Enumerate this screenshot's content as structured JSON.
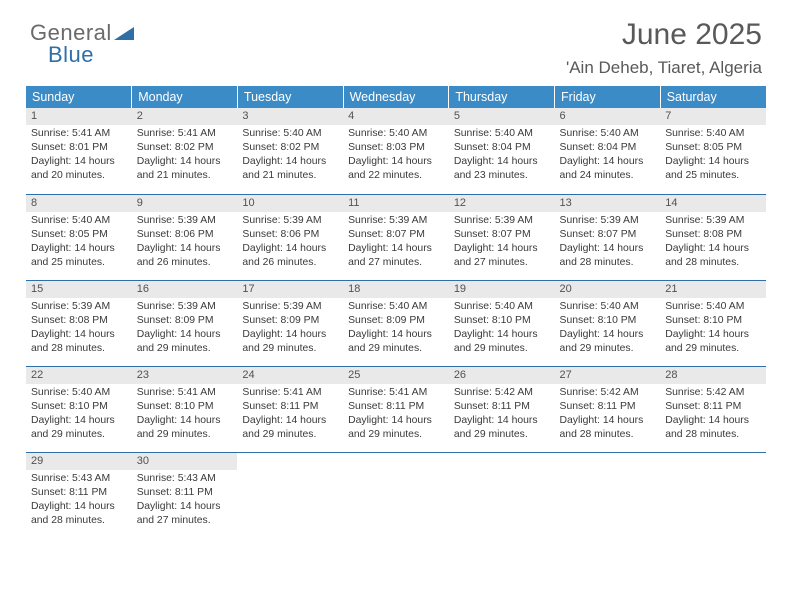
{
  "brand": {
    "line1": "General",
    "line2": "Blue"
  },
  "title": "June 2025",
  "location": "'Ain Deheb, Tiaret, Algeria",
  "colors": {
    "header_bg": "#3b8bc7",
    "header_text": "#ffffff",
    "daynum_bg": "#e9e9e9",
    "rule": "#2f6fa7",
    "text": "#3a3a3a",
    "title": "#595959"
  },
  "weekdays": [
    "Sunday",
    "Monday",
    "Tuesday",
    "Wednesday",
    "Thursday",
    "Friday",
    "Saturday"
  ],
  "days": {
    "1": {
      "sunrise": "5:41 AM",
      "sunset": "8:01 PM",
      "daylight": "14 hours and 20 minutes."
    },
    "2": {
      "sunrise": "5:41 AM",
      "sunset": "8:02 PM",
      "daylight": "14 hours and 21 minutes."
    },
    "3": {
      "sunrise": "5:40 AM",
      "sunset": "8:02 PM",
      "daylight": "14 hours and 21 minutes."
    },
    "4": {
      "sunrise": "5:40 AM",
      "sunset": "8:03 PM",
      "daylight": "14 hours and 22 minutes."
    },
    "5": {
      "sunrise": "5:40 AM",
      "sunset": "8:04 PM",
      "daylight": "14 hours and 23 minutes."
    },
    "6": {
      "sunrise": "5:40 AM",
      "sunset": "8:04 PM",
      "daylight": "14 hours and 24 minutes."
    },
    "7": {
      "sunrise": "5:40 AM",
      "sunset": "8:05 PM",
      "daylight": "14 hours and 25 minutes."
    },
    "8": {
      "sunrise": "5:40 AM",
      "sunset": "8:05 PM",
      "daylight": "14 hours and 25 minutes."
    },
    "9": {
      "sunrise": "5:39 AM",
      "sunset": "8:06 PM",
      "daylight": "14 hours and 26 minutes."
    },
    "10": {
      "sunrise": "5:39 AM",
      "sunset": "8:06 PM",
      "daylight": "14 hours and 26 minutes."
    },
    "11": {
      "sunrise": "5:39 AM",
      "sunset": "8:07 PM",
      "daylight": "14 hours and 27 minutes."
    },
    "12": {
      "sunrise": "5:39 AM",
      "sunset": "8:07 PM",
      "daylight": "14 hours and 27 minutes."
    },
    "13": {
      "sunrise": "5:39 AM",
      "sunset": "8:07 PM",
      "daylight": "14 hours and 28 minutes."
    },
    "14": {
      "sunrise": "5:39 AM",
      "sunset": "8:08 PM",
      "daylight": "14 hours and 28 minutes."
    },
    "15": {
      "sunrise": "5:39 AM",
      "sunset": "8:08 PM",
      "daylight": "14 hours and 28 minutes."
    },
    "16": {
      "sunrise": "5:39 AM",
      "sunset": "8:09 PM",
      "daylight": "14 hours and 29 minutes."
    },
    "17": {
      "sunrise": "5:39 AM",
      "sunset": "8:09 PM",
      "daylight": "14 hours and 29 minutes."
    },
    "18": {
      "sunrise": "5:40 AM",
      "sunset": "8:09 PM",
      "daylight": "14 hours and 29 minutes."
    },
    "19": {
      "sunrise": "5:40 AM",
      "sunset": "8:10 PM",
      "daylight": "14 hours and 29 minutes."
    },
    "20": {
      "sunrise": "5:40 AM",
      "sunset": "8:10 PM",
      "daylight": "14 hours and 29 minutes."
    },
    "21": {
      "sunrise": "5:40 AM",
      "sunset": "8:10 PM",
      "daylight": "14 hours and 29 minutes."
    },
    "22": {
      "sunrise": "5:40 AM",
      "sunset": "8:10 PM",
      "daylight": "14 hours and 29 minutes."
    },
    "23": {
      "sunrise": "5:41 AM",
      "sunset": "8:10 PM",
      "daylight": "14 hours and 29 minutes."
    },
    "24": {
      "sunrise": "5:41 AM",
      "sunset": "8:11 PM",
      "daylight": "14 hours and 29 minutes."
    },
    "25": {
      "sunrise": "5:41 AM",
      "sunset": "8:11 PM",
      "daylight": "14 hours and 29 minutes."
    },
    "26": {
      "sunrise": "5:42 AM",
      "sunset": "8:11 PM",
      "daylight": "14 hours and 29 minutes."
    },
    "27": {
      "sunrise": "5:42 AM",
      "sunset": "8:11 PM",
      "daylight": "14 hours and 28 minutes."
    },
    "28": {
      "sunrise": "5:42 AM",
      "sunset": "8:11 PM",
      "daylight": "14 hours and 28 minutes."
    },
    "29": {
      "sunrise": "5:43 AM",
      "sunset": "8:11 PM",
      "daylight": "14 hours and 28 minutes."
    },
    "30": {
      "sunrise": "5:43 AM",
      "sunset": "8:11 PM",
      "daylight": "14 hours and 27 minutes."
    }
  },
  "labels": {
    "sunrise": "Sunrise: ",
    "sunset": "Sunset: ",
    "daylight": "Daylight: "
  },
  "layout": {
    "start_weekday": 0,
    "num_days": 30,
    "cols": 7
  }
}
